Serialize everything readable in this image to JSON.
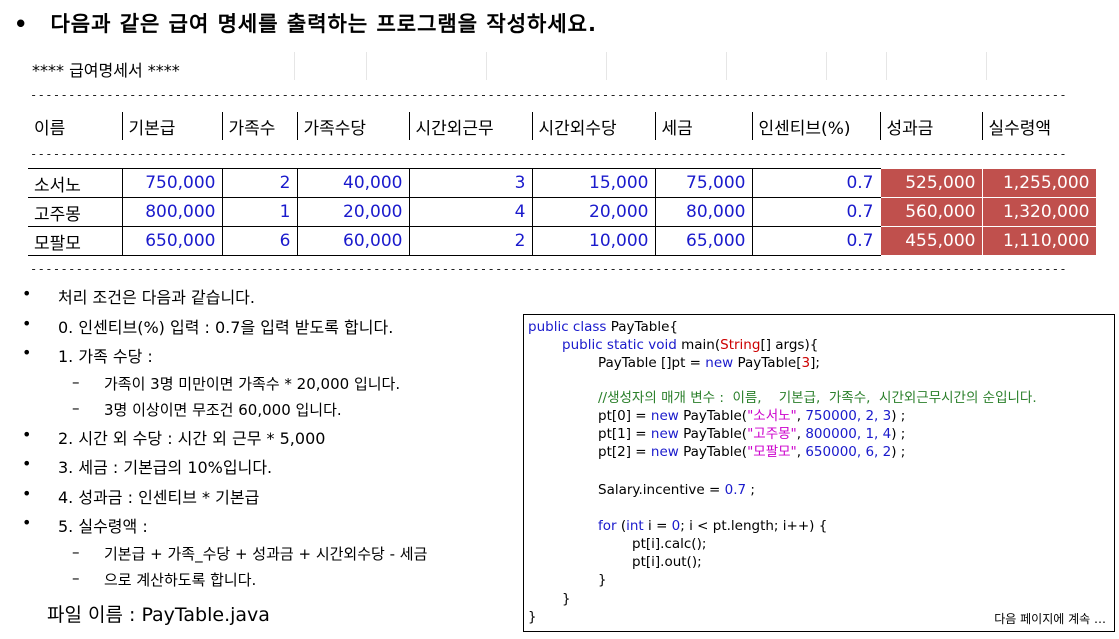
{
  "title": {
    "bullet": "•",
    "text": "다음과 같은 급여 명세를 출력하는 프로그램을 작성하세요."
  },
  "sheet": {
    "heading": "**** 급여명세서 ****",
    "dashes": "---------------------------------------------------------------------------------------------------------------------------------------------------------",
    "columns": [
      "이름",
      "기본급",
      "가족수",
      "가족수당",
      "시간외근무",
      "시간외수당",
      "세금",
      "인센티브(%)",
      "성과금",
      "실수령액"
    ],
    "rows": [
      [
        "소서노",
        "750,000",
        "2",
        "40,000",
        "3",
        "15,000",
        "75,000",
        "0.7",
        "525,000",
        "1,255,000"
      ],
      [
        "고주몽",
        "800,000",
        "1",
        "20,000",
        "4",
        "20,000",
        "80,000",
        "0.7",
        "560,000",
        "1,320,000"
      ],
      [
        "모팔모",
        "650,000",
        "6",
        "60,000",
        "2",
        "10,000",
        "65,000",
        "0.7",
        "455,000",
        "1,110,000"
      ]
    ],
    "highlight_color": "#c0504d"
  },
  "conditions": {
    "bullet": "•",
    "sub_bullet": "–",
    "items": [
      "처리 조건은 다음과 같습니다.",
      "0. 인센티브(%) 입력 : 0.7을 입력 받도록 합니다.",
      "1. 가족 수당 :",
      "2. 시간 외 수당 : 시간 외 근무 * 5,000",
      "3. 세금 : 기본급의 10%입니다.",
      "4. 성과금 : 인센티브 * 기본급",
      "5. 실수령액 :"
    ],
    "sub_family": [
      "가족이 3명 미만이면 가족수 * 20,000 입니다.",
      "3명 이상이면 무조건 60,000 입니다."
    ],
    "sub_net": [
      "기본급 + 가족_수당 + 성과금 + 시간외수당 - 세금",
      "으로 계산하도록 합니다."
    ]
  },
  "filename": "파일 이름 : PayTable.java",
  "code": {
    "l1_kw": "public class",
    "l1_rest": " PayTable{",
    "l2_kw": "public static void",
    "l2_rest1": " main(",
    "l2_cls": "String",
    "l2_rest2": "[] args){",
    "l3_a": "PayTable []pt = ",
    "l3_kw": "new",
    "l3_b": " PayTable[",
    "l3_num": "3",
    "l3_c": "];",
    "comment": "//생성자의 매개 변수 :  이름,    기본급,  가족수,  시간외근무시간의 순입니다.",
    "p0_a": "pt[0] = ",
    "p0_kw": "new",
    "p0_b": " PayTable(",
    "p0_str": "\"소서노\"",
    "p0_c": ", ",
    "p0_n": "750000, 2, 3",
    "p0_d": ") ;",
    "p1_a": "pt[1] = ",
    "p1_kw": "new",
    "p1_b": " PayTable(",
    "p1_str": "\"고주몽\"",
    "p1_c": ", ",
    "p1_n": "800000, 1, 4",
    "p1_d": ") ;",
    "p2_a": "pt[2] = ",
    "p2_kw": "new",
    "p2_b": " PayTable(",
    "p2_str": "\"모팔모\"",
    "p2_c": ", ",
    "p2_n": "650000, 6, 2",
    "p2_d": ") ;",
    "inc_a": "Salary.incentive = ",
    "inc_n": "0.7",
    "inc_b": " ;",
    "for_kw": "for",
    "for_a": " (",
    "for_int": "int",
    "for_b": " i = ",
    "for_n": "0",
    "for_c": "; i < pt.length; i++) {",
    "calc": "pt[i].calc();",
    "out": "pt[i].out();",
    "close": "}",
    "continue": "다음 페이지에 계속 …"
  }
}
